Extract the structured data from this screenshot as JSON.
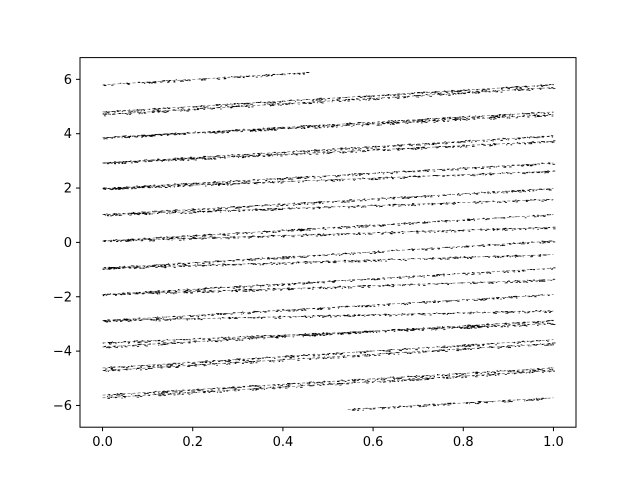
{
  "chart_data": {
    "type": "scatter",
    "title": "",
    "xlabel": "",
    "ylabel": "",
    "xlim": [
      -0.05,
      1.05
    ],
    "ylim": [
      -6.8,
      6.8
    ],
    "x_ticks": [
      0.0,
      0.2,
      0.4,
      0.6,
      0.8,
      1.0
    ],
    "x_tick_labels": [
      "0.0",
      "0.2",
      "0.4",
      "0.6",
      "0.8",
      "1.0"
    ],
    "y_ticks": [
      -6,
      -4,
      -2,
      0,
      2,
      4,
      6
    ],
    "y_tick_labels": [
      "−6",
      "−4",
      "−2",
      "0",
      "2",
      "4",
      "6"
    ],
    "grid": false,
    "legend": "none",
    "marker": "pixel",
    "color": "#000000",
    "series": [
      {
        "x": [
          0.0,
          0.456
        ],
        "y": [
          5.8,
          6.25
        ]
      },
      {
        "x": [
          0.0,
          1.0
        ],
        "y": [
          4.8,
          5.8
        ]
      },
      {
        "x": [
          0.0,
          1.0
        ],
        "y": [
          4.7,
          5.7
        ]
      },
      {
        "x": [
          0.0,
          1.0
        ],
        "y": [
          3.85,
          4.8
        ]
      },
      {
        "x": [
          0.0,
          1.0
        ],
        "y": [
          3.85,
          4.7
        ]
      },
      {
        "x": [
          0.0,
          1.0
        ],
        "y": [
          2.92,
          3.92
        ]
      },
      {
        "x": [
          0.0,
          1.0
        ],
        "y": [
          2.92,
          3.72
        ]
      },
      {
        "x": [
          0.0,
          1.0
        ],
        "y": [
          1.98,
          2.92
        ]
      },
      {
        "x": [
          0.0,
          1.0
        ],
        "y": [
          1.98,
          2.62
        ]
      },
      {
        "x": [
          0.0,
          1.0
        ],
        "y": [
          1.02,
          1.98
        ]
      },
      {
        "x": [
          0.0,
          1.0
        ],
        "y": [
          1.02,
          1.58
        ]
      },
      {
        "x": [
          0.0,
          1.0
        ],
        "y": [
          0.05,
          1.02
        ]
      },
      {
        "x": [
          0.0,
          1.0
        ],
        "y": [
          0.05,
          0.55
        ]
      },
      {
        "x": [
          0.0,
          1.0
        ],
        "y": [
          -0.95,
          0.05
        ]
      },
      {
        "x": [
          0.0,
          1.0
        ],
        "y": [
          -0.95,
          -0.45
        ]
      },
      {
        "x": [
          0.0,
          1.0
        ],
        "y": [
          -1.92,
          -0.95
        ]
      },
      {
        "x": [
          0.0,
          1.0
        ],
        "y": [
          -1.92,
          -1.38
        ]
      },
      {
        "x": [
          0.0,
          1.0
        ],
        "y": [
          -2.88,
          -1.92
        ]
      },
      {
        "x": [
          0.0,
          1.0
        ],
        "y": [
          -2.88,
          -2.52
        ]
      },
      {
        "x": [
          0.0,
          1.0
        ],
        "y": [
          -3.85,
          -2.88
        ]
      },
      {
        "x": [
          0.0,
          1.0
        ],
        "y": [
          -3.7,
          -2.98
        ]
      },
      {
        "x": [
          0.0,
          1.0
        ],
        "y": [
          -4.72,
          -3.72
        ]
      },
      {
        "x": [
          0.0,
          1.0
        ],
        "y": [
          -4.62,
          -3.58
        ]
      },
      {
        "x": [
          0.0,
          1.0
        ],
        "y": [
          -5.72,
          -4.72
        ]
      },
      {
        "x": [
          0.0,
          1.0
        ],
        "y": [
          -5.62,
          -4.62
        ]
      },
      {
        "x": [
          0.544,
          1.0
        ],
        "y": [
          -6.15,
          -5.72
        ]
      }
    ]
  }
}
